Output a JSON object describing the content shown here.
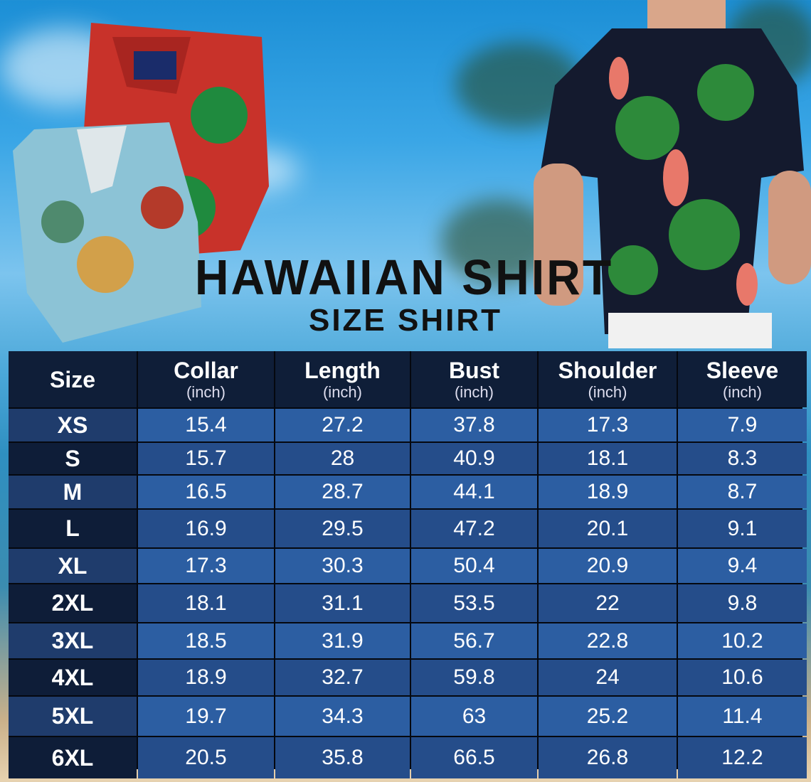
{
  "title": "HAWAIIAN SHIRT",
  "subtitle": "SIZE SHIRT",
  "colors": {
    "header_bg": "#0f1e38",
    "row_light": "#2c5ea2",
    "row_dark": "#254d8a",
    "size_light": "#1f3c6c",
    "size_dark": "#0e1d38"
  },
  "chart_data": {
    "type": "table",
    "columns": [
      {
        "name": "Size",
        "unit": ""
      },
      {
        "name": "Collar",
        "unit": "(inch)"
      },
      {
        "name": "Length",
        "unit": "(inch)"
      },
      {
        "name": "Bust",
        "unit": "(inch)"
      },
      {
        "name": "Shoulder",
        "unit": "(inch)"
      },
      {
        "name": "Sleeve",
        "unit": "(inch)"
      }
    ],
    "rows": [
      [
        "XS",
        "15.4",
        "27.2",
        "37.8",
        "17.3",
        "7.9"
      ],
      [
        "S",
        "15.7",
        "28",
        "40.9",
        "18.1",
        "8.3"
      ],
      [
        "M",
        "16.5",
        "28.7",
        "44.1",
        "18.9",
        "8.7"
      ],
      [
        "L",
        "16.9",
        "29.5",
        "47.2",
        "20.1",
        "9.1"
      ],
      [
        "XL",
        "17.3",
        "30.3",
        "50.4",
        "20.9",
        "9.4"
      ],
      [
        "2XL",
        "18.1",
        "31.1",
        "53.5",
        "22",
        "9.8"
      ],
      [
        "3XL",
        "18.5",
        "31.9",
        "56.7",
        "22.8",
        "10.2"
      ],
      [
        "4XL",
        "18.9",
        "32.7",
        "59.8",
        "24",
        "10.6"
      ],
      [
        "5XL",
        "19.7",
        "34.3",
        "63",
        "25.2",
        "11.4"
      ],
      [
        "6XL",
        "20.5",
        "35.8",
        "66.5",
        "26.8",
        "12.2"
      ]
    ]
  }
}
